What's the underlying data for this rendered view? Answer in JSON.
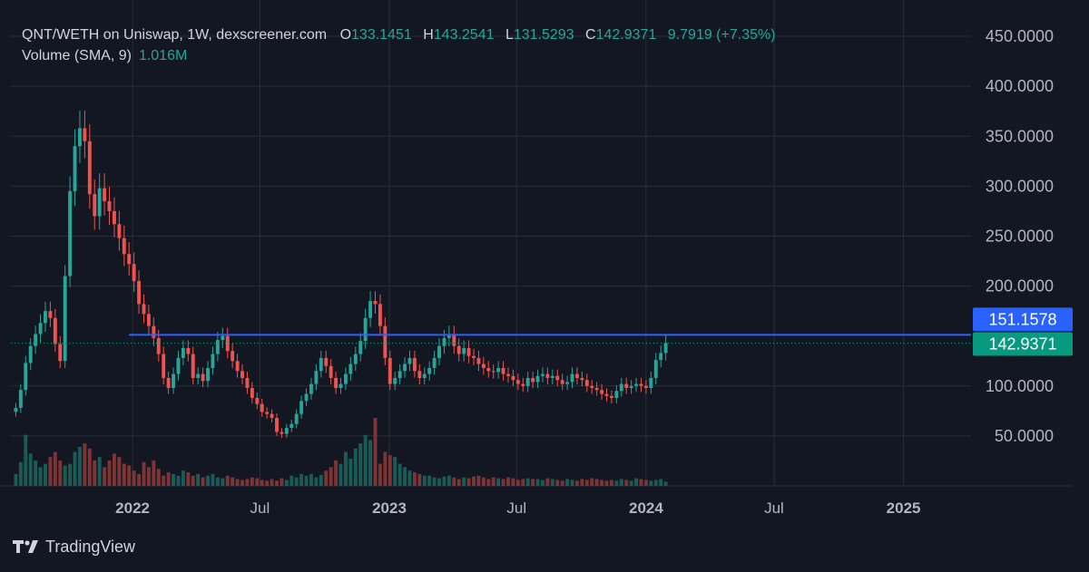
{
  "legend": {
    "symbol": "QNT/WETH on Uniswap, 1W, dexscreener.com",
    "open_key": "O",
    "open": "133.1451",
    "high_key": "H",
    "high": "143.2541",
    "low_key": "L",
    "low": "131.5293",
    "close_key": "C",
    "close": "142.9371",
    "change": "9.7919 (+7.35%)",
    "volume_label": "Volume (SMA, 9)",
    "volume_value": "1.016M"
  },
  "branding": {
    "label": "TradingView",
    "icon": "tradingview-logo-icon"
  },
  "colors": {
    "background": "#131722",
    "grid": "#2a2e39",
    "up": "#26a69a",
    "down": "#ef5350",
    "up_volume": "#1a5b55",
    "down_volume": "#7d3434",
    "horizontal_line": "#2962ff",
    "price_tag": "#089981",
    "level_tag": "#2962ff"
  },
  "chart_data": {
    "type": "candlestick",
    "interval": "1W",
    "ylim": [
      0,
      470
    ],
    "y_ticks": [
      "450.0000",
      "400.0000",
      "350.0000",
      "300.0000",
      "250.0000",
      "200.0000",
      "100.0000",
      "50.0000"
    ],
    "y_tick_values": [
      450,
      400,
      350,
      300,
      250,
      200,
      100,
      50
    ],
    "x_ticks": [
      {
        "label": "2022",
        "date": "2022-01-01",
        "bold": true
      },
      {
        "label": "Jul",
        "date": "2022-07-01",
        "bold": false
      },
      {
        "label": "2023",
        "date": "2023-01-01",
        "bold": true
      },
      {
        "label": "Jul",
        "date": "2023-07-01",
        "bold": false
      },
      {
        "label": "2024",
        "date": "2024-01-01",
        "bold": true
      },
      {
        "label": "Jul",
        "date": "2024-07-01",
        "bold": false
      },
      {
        "label": "2025",
        "date": "2025-01-01",
        "bold": true
      }
    ],
    "xlim": [
      "2021-07-12",
      "2025-04-07"
    ],
    "first_candle_date": "2021-07-19",
    "horizontal_level": {
      "value": 151.1578,
      "label": "151.1578",
      "from_date": "2021-12-27"
    },
    "last_price": {
      "value": 142.9371,
      "label": "142.9371"
    },
    "closes": [
      78,
      96,
      123,
      140,
      152,
      163,
      175,
      168,
      142,
      125,
      210,
      295,
      340,
      358,
      345,
      292,
      270,
      298,
      285,
      275,
      262,
      248,
      232,
      222,
      205,
      182,
      172,
      160,
      148,
      132,
      108,
      98,
      112,
      128,
      138,
      132,
      108,
      112,
      105,
      118,
      132,
      146,
      150,
      135,
      125,
      115,
      108,
      98,
      88,
      82,
      74,
      72,
      68,
      54,
      52,
      58,
      62,
      72,
      85,
      92,
      102,
      115,
      128,
      120,
      108,
      98,
      102,
      112,
      122,
      132,
      145,
      168,
      185,
      182,
      160,
      128,
      102,
      108,
      115,
      122,
      128,
      115,
      108,
      112,
      118,
      128,
      140,
      148,
      152,
      140,
      132,
      138,
      130,
      128,
      122,
      118,
      115,
      114,
      118,
      112,
      110,
      106,
      102,
      100,
      108,
      104,
      110,
      112,
      108,
      110,
      106,
      102,
      104,
      112,
      108,
      106,
      100,
      98,
      96,
      92,
      90,
      88,
      95,
      102,
      98,
      100,
      102,
      100,
      98,
      108,
      126,
      133,
      143
    ],
    "volumes": [
      14,
      28,
      60,
      38,
      30,
      22,
      26,
      34,
      40,
      30,
      24,
      26,
      40,
      46,
      50,
      44,
      30,
      34,
      22,
      30,
      38,
      34,
      26,
      24,
      18,
      14,
      28,
      22,
      30,
      20,
      12,
      16,
      14,
      12,
      18,
      16,
      12,
      14,
      10,
      12,
      14,
      10,
      9,
      12,
      10,
      8,
      7,
      8,
      10,
      9,
      7,
      6,
      8,
      6,
      9,
      7,
      12,
      10,
      14,
      12,
      14,
      10,
      13,
      18,
      22,
      30,
      26,
      40,
      32,
      44,
      50,
      60,
      54,
      80,
      26,
      40,
      36,
      34,
      26,
      22,
      18,
      16,
      14,
      12,
      12,
      10,
      9,
      11,
      12,
      10,
      8,
      10,
      9,
      11,
      12,
      10,
      8,
      10,
      9,
      8,
      10,
      9,
      7,
      8,
      9,
      8,
      8,
      7,
      9,
      8,
      7,
      6,
      8,
      7,
      6,
      8,
      7,
      9,
      8,
      7,
      6,
      7,
      6,
      8,
      7,
      6,
      9,
      8,
      7,
      6,
      7,
      8,
      5
    ]
  }
}
